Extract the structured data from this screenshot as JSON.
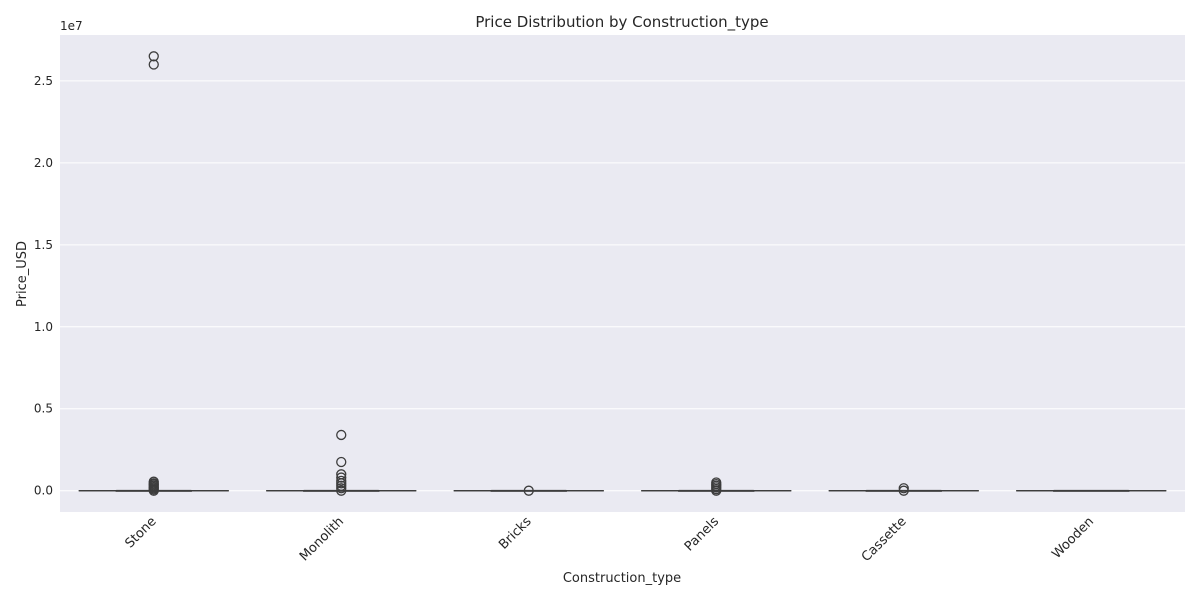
{
  "chart_data": {
    "type": "box",
    "title": "Price Distribution by Construction_type",
    "xlabel": "Construction_type",
    "ylabel": "Price_USD",
    "y_offset_label": "1e7",
    "y_scale": 10000000,
    "ylim": [
      -1300000,
      27800000
    ],
    "yticks": [
      0,
      5000000,
      10000000,
      15000000,
      20000000,
      25000000
    ],
    "ytick_labels": [
      "0.0",
      "0.5",
      "1.0",
      "1.5",
      "2.0",
      "2.5"
    ],
    "grid": true,
    "categories": [
      "Stone",
      "Monolith",
      "Bricks",
      "Panels",
      "Cassette",
      "Wooden"
    ],
    "boxes": [
      {
        "category": "Stone",
        "whisker_low": 0,
        "q1": 0,
        "median": 0,
        "q3": 0,
        "whisker_high": 0,
        "outliers": [
          26500000,
          26000000,
          550000,
          450000,
          380000,
          300000,
          220000,
          150000,
          80000,
          0
        ]
      },
      {
        "category": "Monolith",
        "whisker_low": 0,
        "q1": 0,
        "median": 0,
        "q3": 0,
        "whisker_high": 0,
        "outliers": [
          3400000,
          1750000,
          1000000,
          800000,
          600000,
          450000,
          300000,
          150000,
          0
        ]
      },
      {
        "category": "Bricks",
        "whisker_low": 0,
        "q1": 0,
        "median": 0,
        "q3": 0,
        "whisker_high": 0,
        "outliers": [
          0
        ]
      },
      {
        "category": "Panels",
        "whisker_low": 0,
        "q1": 0,
        "median": 0,
        "q3": 0,
        "whisker_high": 0,
        "outliers": [
          500000,
          400000,
          300000,
          200000,
          100000,
          0
        ]
      },
      {
        "category": "Cassette",
        "whisker_low": 0,
        "q1": 0,
        "median": 0,
        "q3": 0,
        "whisker_high": 0,
        "outliers": [
          150000,
          0
        ]
      },
      {
        "category": "Wooden",
        "whisker_low": 0,
        "q1": 0,
        "median": 0,
        "q3": 0,
        "whisker_high": 0,
        "outliers": []
      }
    ],
    "colors": {
      "plot_bg": "#eaeaf2",
      "grid": "#ffffff",
      "box_edge": "#3d3d3d",
      "text": "#262626"
    }
  }
}
